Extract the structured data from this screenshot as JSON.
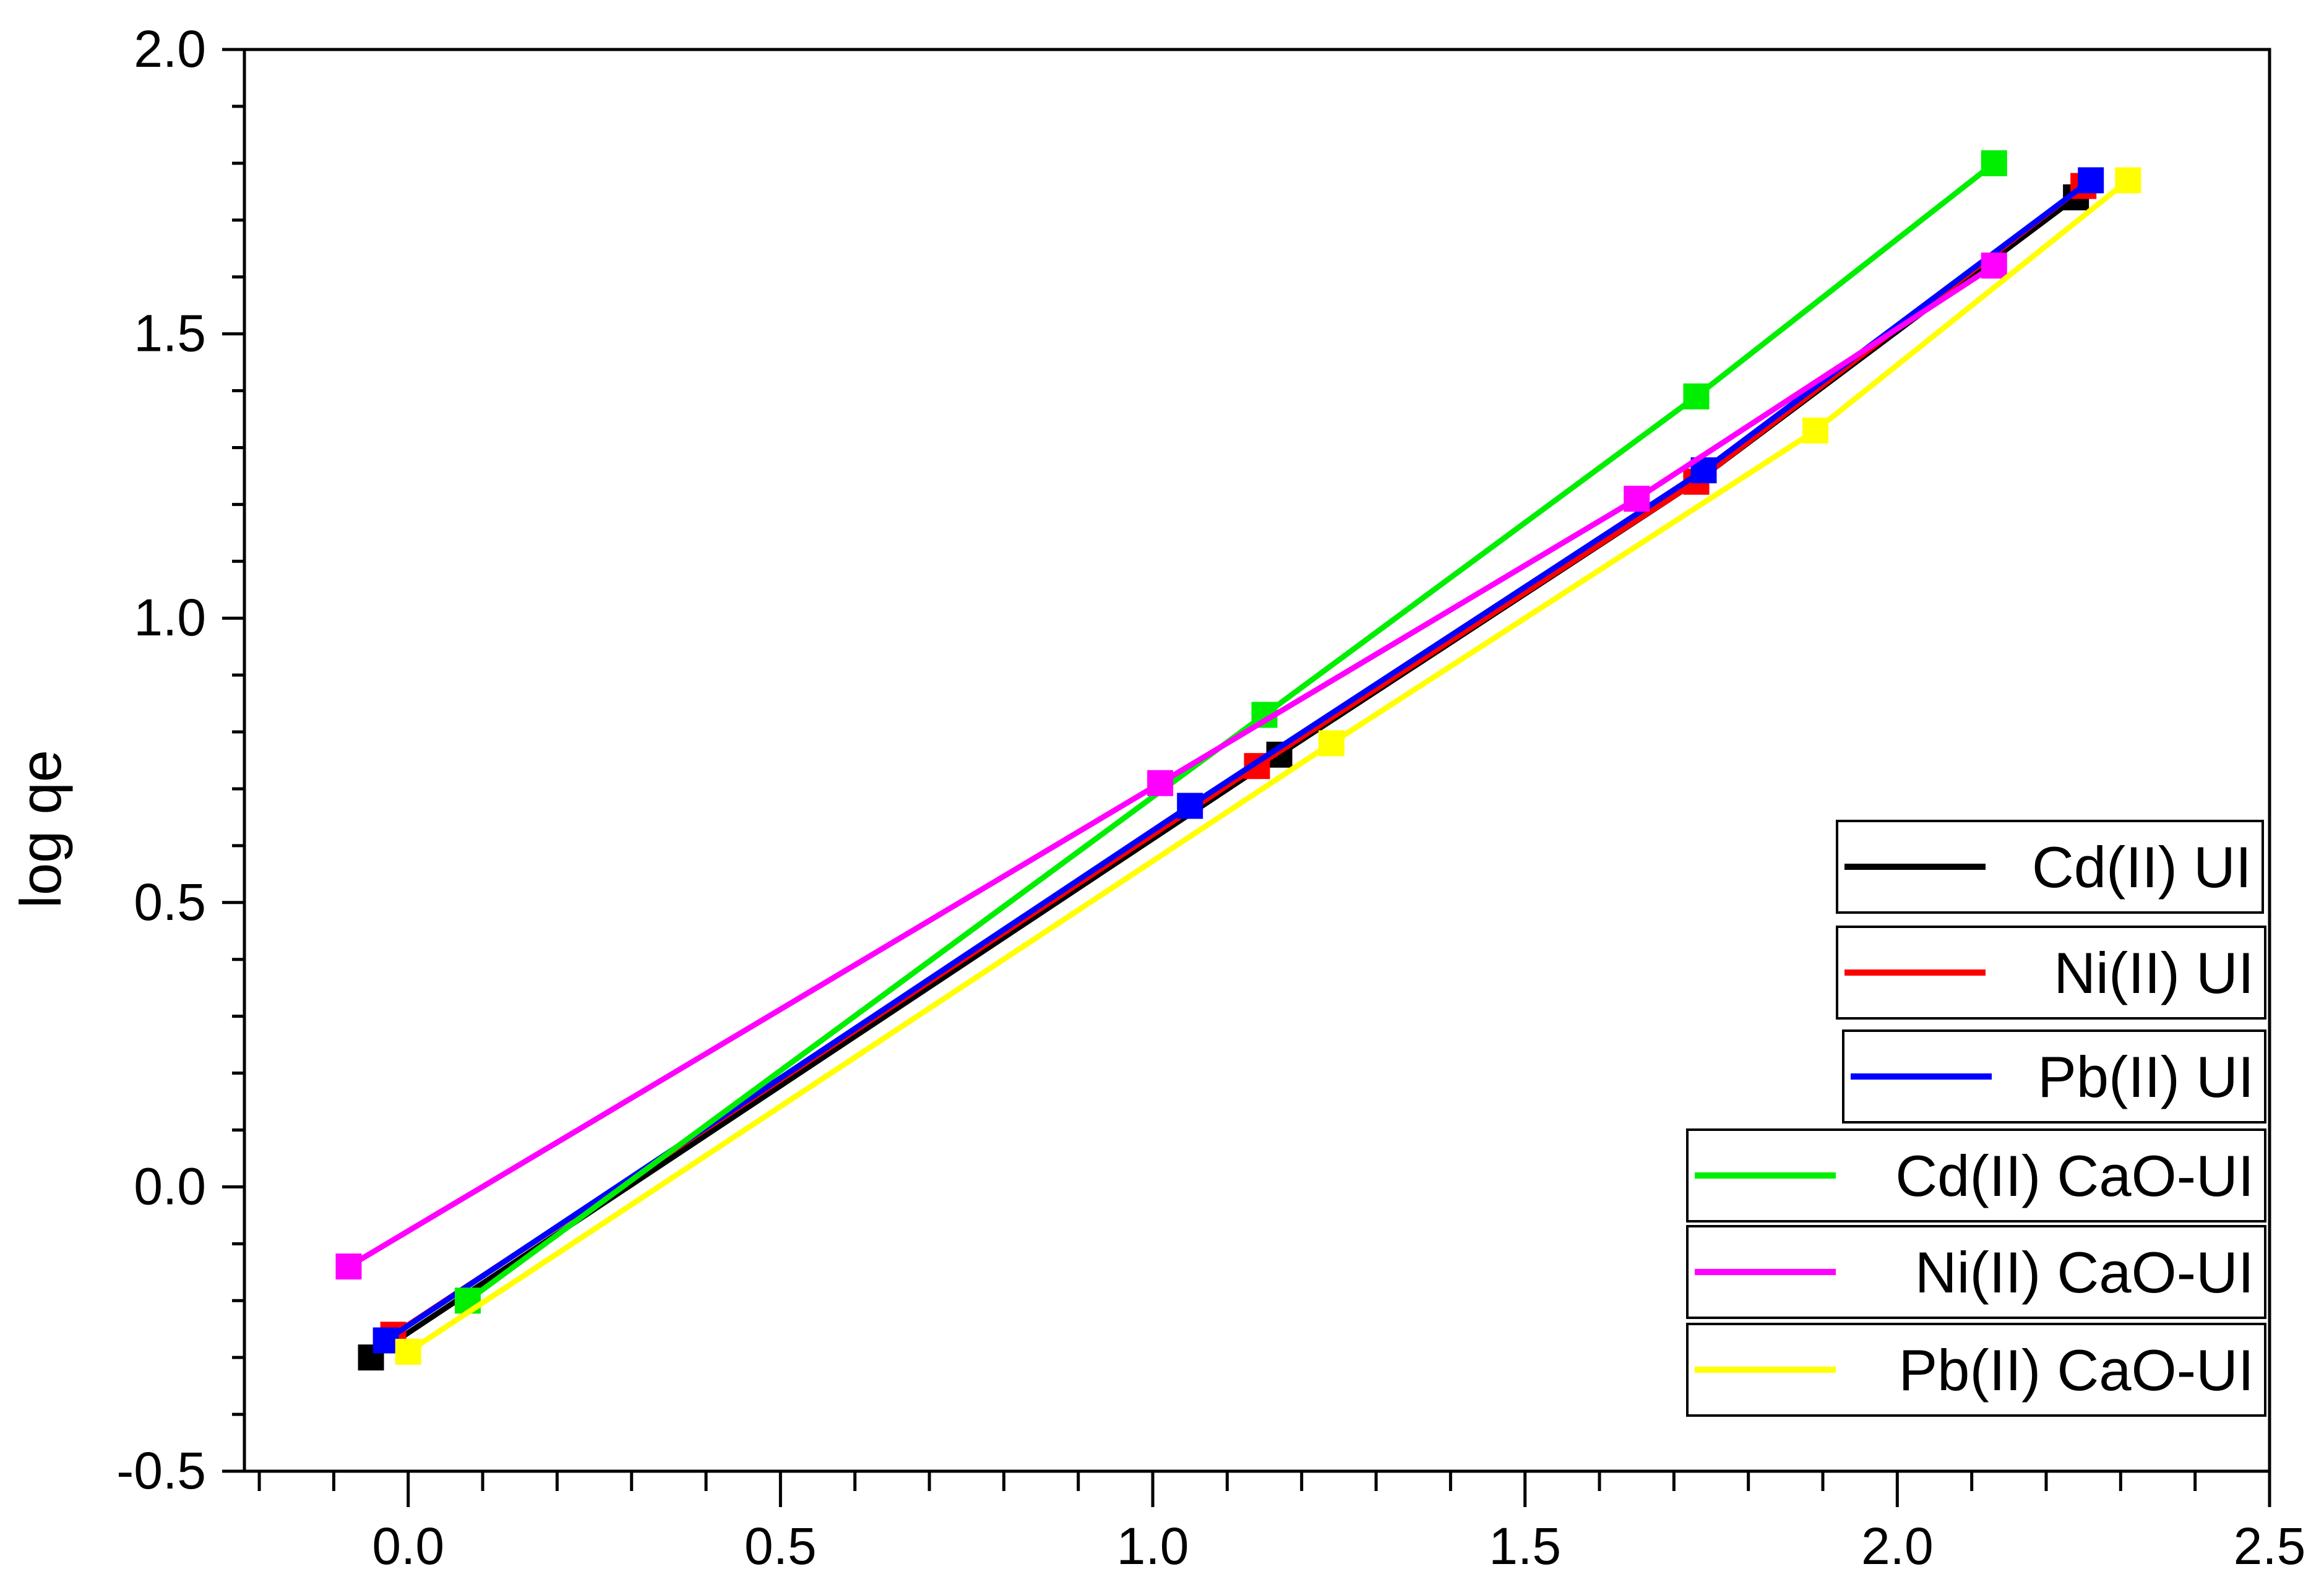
{
  "chart_data": {
    "type": "line",
    "title": "",
    "xlabel": "",
    "ylabel": "log qe",
    "xlim": [
      -0.22,
      2.5
    ],
    "ylim": [
      -0.5,
      2.0
    ],
    "x_ticks": [
      {
        "value": 0.0,
        "label": "0.0"
      },
      {
        "value": 0.5,
        "label": "0.5"
      },
      {
        "value": 1.0,
        "label": "1.0"
      },
      {
        "value": 1.5,
        "label": "1.5"
      },
      {
        "value": 2.0,
        "label": "2.0"
      },
      {
        "value": 2.5,
        "label": "2.5"
      }
    ],
    "y_ticks": [
      {
        "value": -0.5,
        "label": "-0.5"
      },
      {
        "value": 0.0,
        "label": "0.0"
      },
      {
        "value": 0.5,
        "label": "0.5"
      },
      {
        "value": 1.0,
        "label": "1.0"
      },
      {
        "value": 1.5,
        "label": "1.5"
      },
      {
        "value": 2.0,
        "label": "2.0"
      }
    ],
    "grid": false,
    "legend_position": "bottom-right",
    "series": [
      {
        "name": "Cd(II) UI",
        "color": "#000000",
        "x": [
          -0.05,
          1.17,
          1.73,
          2.24
        ],
        "y": [
          -0.3,
          0.76,
          1.24,
          1.74
        ]
      },
      {
        "name": "Ni(II) UI",
        "color": "#ff0000",
        "x": [
          -0.02,
          1.14,
          1.73,
          2.25
        ],
        "y": [
          -0.26,
          0.74,
          1.24,
          1.76
        ]
      },
      {
        "name": "Pb(II) UI",
        "color": "#0000ff",
        "x": [
          -0.03,
          1.05,
          1.74,
          2.26
        ],
        "y": [
          -0.27,
          0.67,
          1.26,
          1.77
        ]
      },
      {
        "name": "Cd(II) CaO-UI",
        "color": "#00ee00",
        "x": [
          0.08,
          1.15,
          1.73,
          2.13
        ],
        "y": [
          -0.2,
          0.83,
          1.39,
          1.8
        ]
      },
      {
        "name": "Ni(II) CaO-UI",
        "color": "#ff00ff",
        "x": [
          -0.08,
          1.01,
          1.65,
          2.13
        ],
        "y": [
          -0.14,
          0.71,
          1.21,
          1.62
        ]
      },
      {
        "name": "Pb(II) CaO-UI",
        "color": "#ffff00",
        "x": [
          0.0,
          1.24,
          1.89,
          2.31
        ],
        "y": [
          -0.29,
          0.78,
          1.33,
          1.77
        ]
      }
    ]
  }
}
